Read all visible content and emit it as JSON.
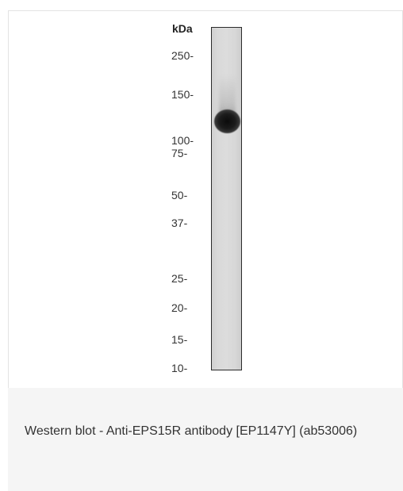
{
  "figure": {
    "unit_label": "kDa",
    "markers": [
      "250-",
      "150-",
      "100-",
      "75-",
      "50-",
      "37-",
      "25-",
      "20-",
      "15-",
      "10-"
    ]
  },
  "caption": {
    "text": "Western blot - Anti-EPS15R antibody [EP1147Y] (ab53006)"
  }
}
